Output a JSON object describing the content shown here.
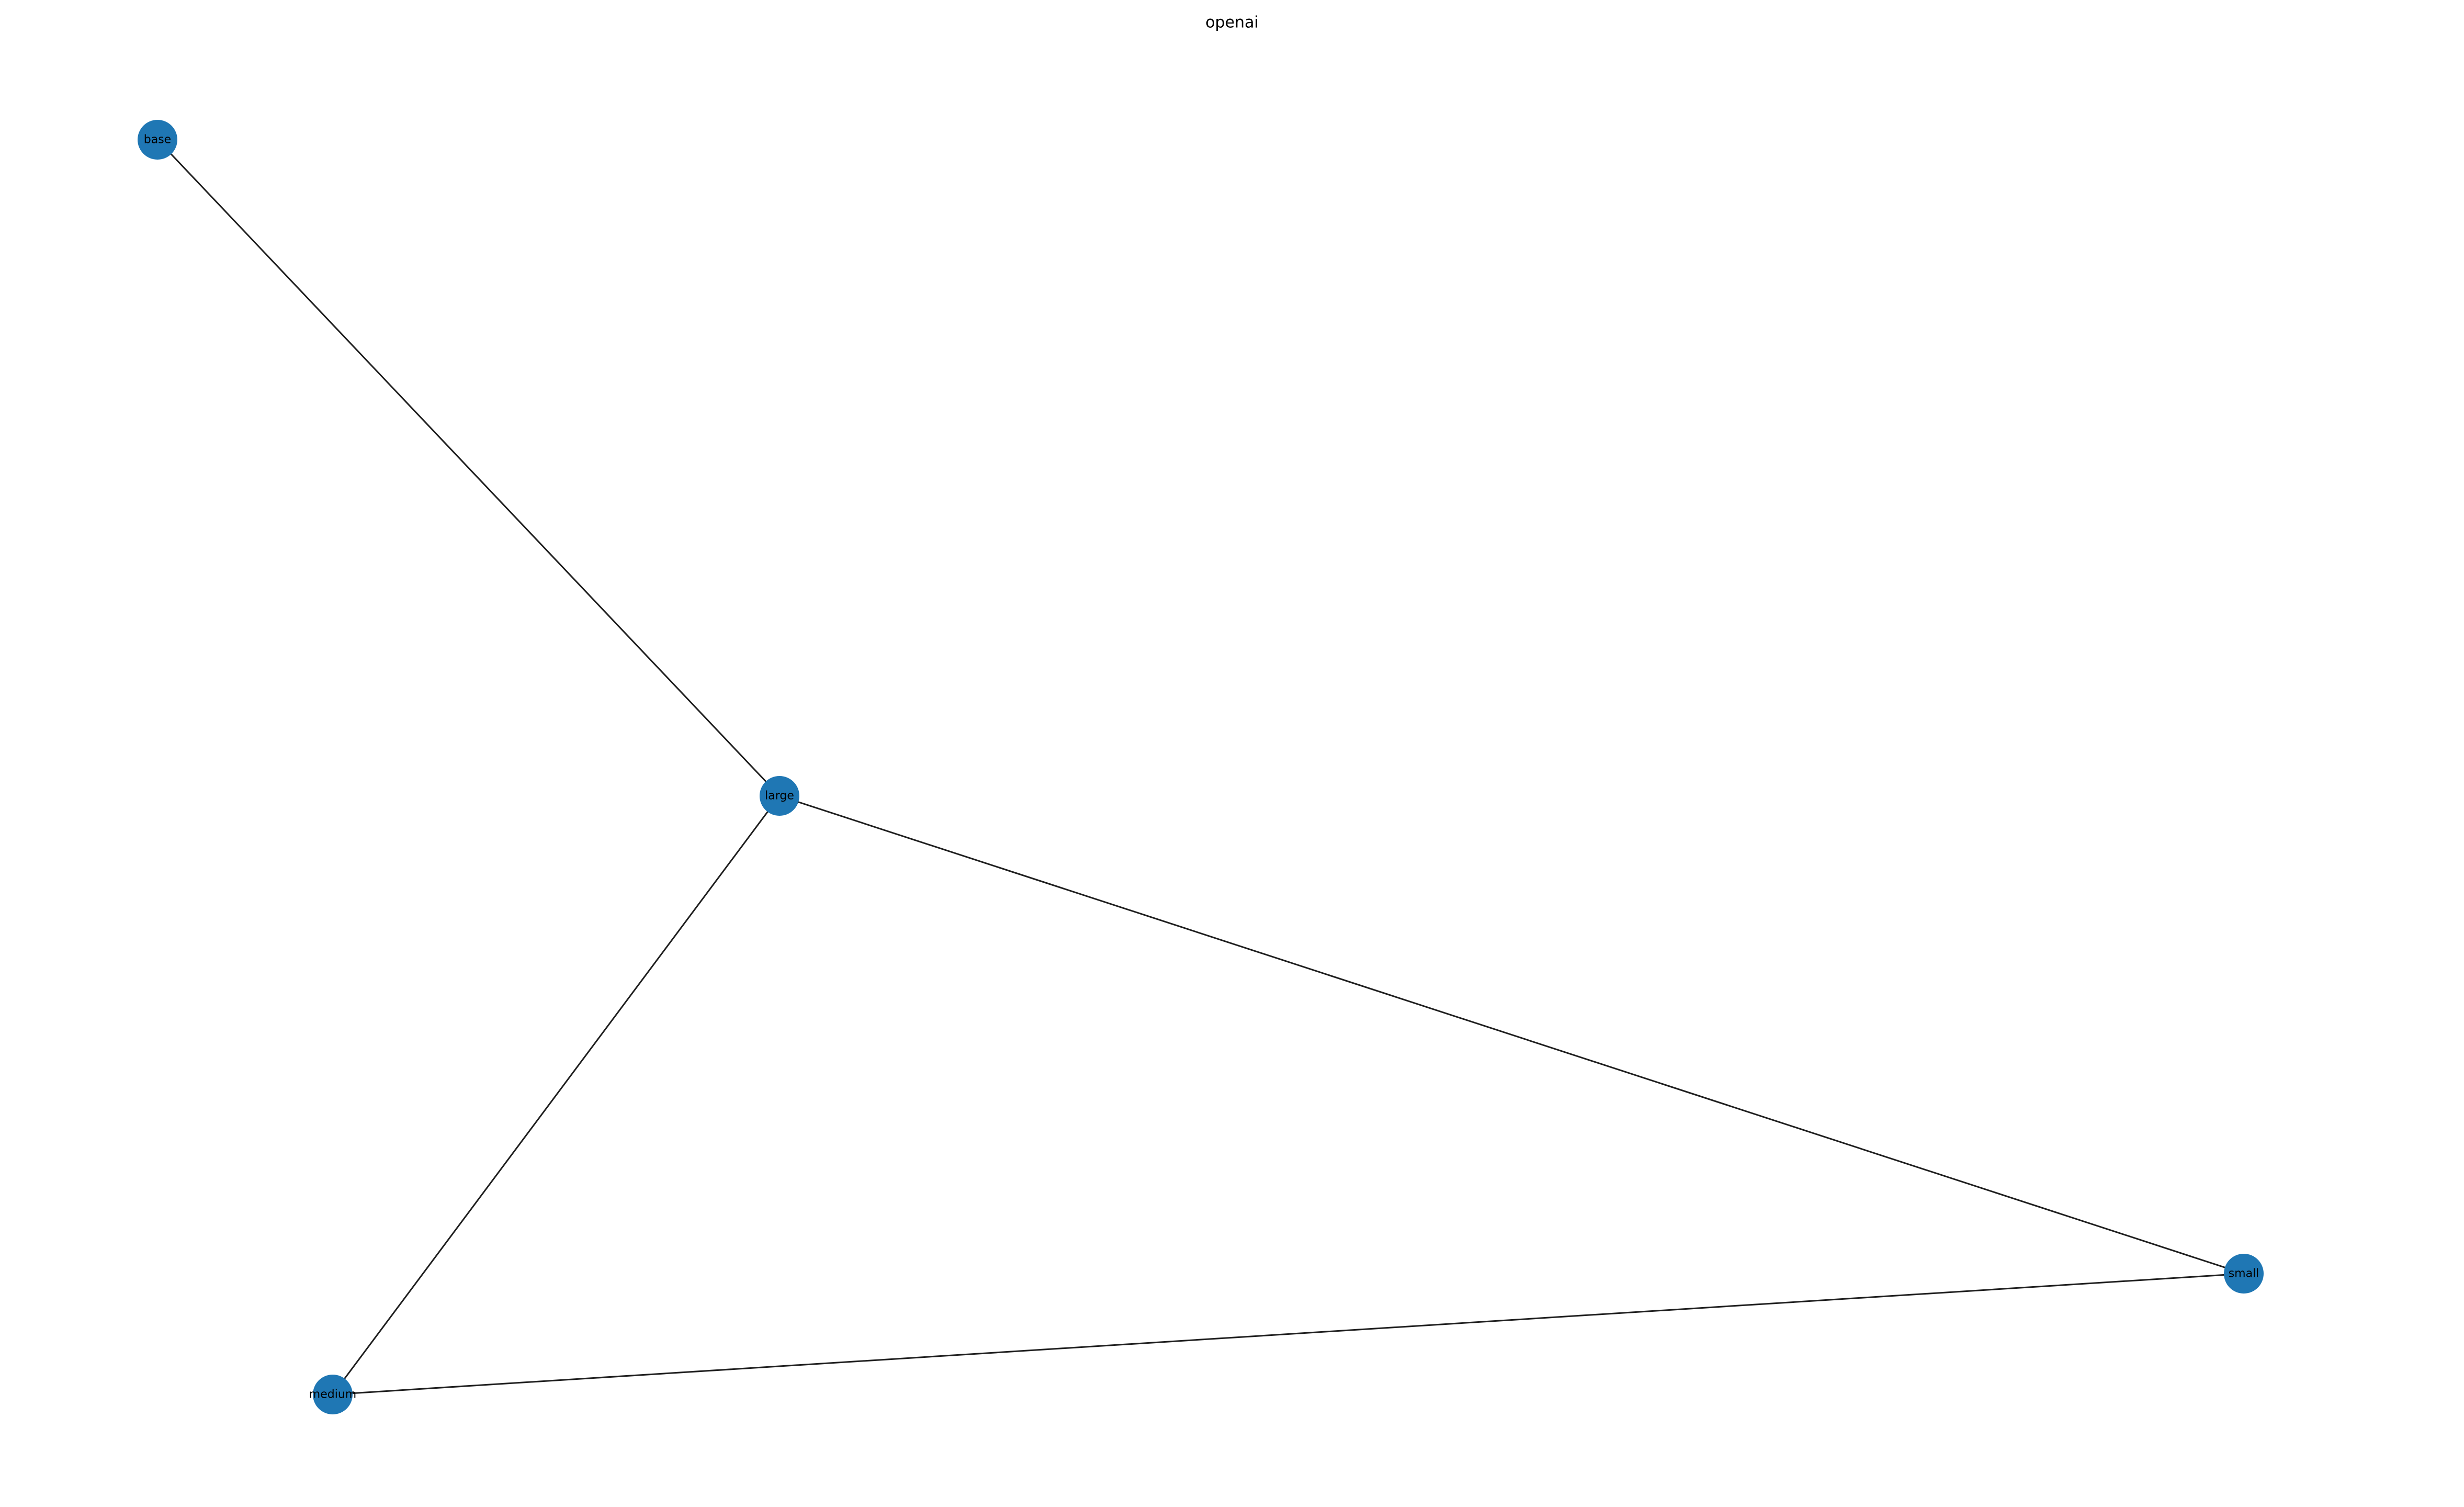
{
  "title": "openai",
  "colors": {
    "node": "#1f77b4",
    "edge": "#1f1f1f",
    "background": "#ffffff"
  },
  "nodes": [
    {
      "id": "base",
      "label": "base"
    },
    {
      "id": "large",
      "label": "large"
    },
    {
      "id": "small",
      "label": "small"
    },
    {
      "id": "medium",
      "label": "medium"
    }
  ],
  "edges": [
    {
      "source": "base",
      "target": "large"
    },
    {
      "source": "large",
      "target": "medium"
    },
    {
      "source": "large",
      "target": "small"
    },
    {
      "source": "medium",
      "target": "small"
    }
  ]
}
